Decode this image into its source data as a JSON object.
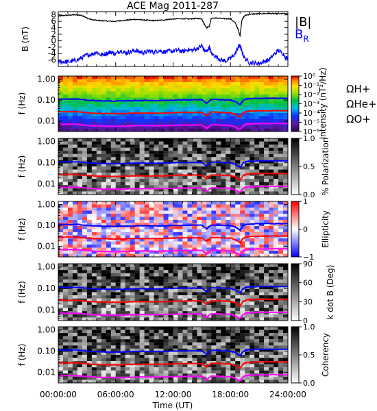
{
  "chart_data": {
    "title": "ACE Mag 2011-287",
    "xlabel": "Time (UT)",
    "xticks": [
      "00:00:00",
      "06:00:00",
      "12:00:00",
      "18:00:00",
      "24:00:00"
    ],
    "xlim_hours": [
      0,
      24
    ],
    "panels": [
      {
        "type": "line",
        "ylabel": "B (nT)",
        "ylim": [
          -8,
          9
        ],
        "yticks": [
          "8",
          "6",
          "4",
          "2",
          "0",
          "-2",
          "-4",
          "-6"
        ],
        "ytick_values": [
          8,
          6,
          4,
          2,
          0,
          -2,
          -4,
          -6
        ],
        "legend": [
          "|B|",
          "B"
        ],
        "legend_subscript": "R",
        "legend_placement": "right",
        "series": [
          {
            "name": "|B|",
            "color": "#000000",
            "x": [
              0,
              0.5,
              1,
              1.5,
              2,
              2.5,
              3,
              3.5,
              4,
              4.5,
              5,
              5.5,
              6,
              6.5,
              7,
              7.5,
              8,
              8.5,
              9,
              9.5,
              10,
              10.5,
              11,
              11.5,
              12,
              12.5,
              13,
              13.5,
              14,
              14.5,
              15,
              15.2,
              15.5,
              15.8,
              16,
              16.5,
              17,
              17.5,
              18,
              18.5,
              18.8,
              19,
              19.2,
              19.5,
              20,
              20.5,
              21,
              21.5,
              22,
              22.5,
              23,
              23.5,
              24
            ],
            "y": [
              7.6,
              7.8,
              7.9,
              8.0,
              8.0,
              7.8,
              7.0,
              6.5,
              6.3,
              6.2,
              6.1,
              6.0,
              6.0,
              6.2,
              6.3,
              6.5,
              6.6,
              6.5,
              6.4,
              6.3,
              6.2,
              6.3,
              6.4,
              6.6,
              6.7,
              6.8,
              6.8,
              6.7,
              6.8,
              6.9,
              6.8,
              5.5,
              4.0,
              4.5,
              7.0,
              7.0,
              6.9,
              6.8,
              6.8,
              5.5,
              3.5,
              1.5,
              6.5,
              7.8,
              8.2,
              8.3,
              8.3,
              8.4,
              8.4,
              8.4,
              8.3,
              8.4,
              8.3
            ]
          },
          {
            "name": "B",
            "color": "#0000ff",
            "x": [
              0,
              0.5,
              1,
              1.5,
              2,
              2.5,
              3,
              3.5,
              4,
              4.5,
              5,
              5.5,
              6,
              6.5,
              7,
              7.5,
              8,
              8.5,
              9,
              9.5,
              10,
              10.5,
              11,
              11.5,
              12,
              12.5,
              13,
              13.5,
              14,
              14.5,
              15,
              15.2,
              15.5,
              15.8,
              16,
              16.5,
              17,
              17.5,
              18,
              18.5,
              18.8,
              19,
              19.2,
              19.5,
              20,
              20.5,
              21,
              21.5,
              22,
              22.5,
              23,
              23.5,
              24
            ],
            "y": [
              -6.6,
              -6.5,
              -6.6,
              -6.3,
              -6.0,
              -5.2,
              -4.5,
              -4.2,
              -3.5,
              -4.5,
              -4.0,
              -3.5,
              -4.2,
              -3.0,
              -3.8,
              -3.5,
              -3.0,
              -3.5,
              -3.8,
              -3.2,
              -3.6,
              -3.0,
              -3.5,
              -3.3,
              -3.2,
              -3.0,
              -3.4,
              -2.8,
              -3.0,
              -2.5,
              -1.5,
              -2.8,
              -3.5,
              -2.0,
              -4.0,
              -5.0,
              -6.0,
              -6.3,
              -5.5,
              -4.0,
              -2.0,
              -1.5,
              -3.5,
              -5.5,
              -6.8,
              -7.0,
              -7.0,
              -6.5,
              -6.0,
              -4.5,
              -3.0,
              -4.0,
              -6.0
            ]
          }
        ]
      },
      {
        "type": "heatmap",
        "name": "power",
        "ylabel": "f (Hz)",
        "yticks": [
          "1.00",
          "0.10",
          "0.01"
        ],
        "ylim_log10": [
          -2.5,
          0.15
        ],
        "colorbar": {
          "label": "Intensity (nT²/Hz)",
          "ticks": [
            "10⁰",
            "10⁻¹",
            "10⁻²",
            "10⁻³",
            "10⁻⁴",
            "10⁻⁵",
            "10⁻⁶"
          ],
          "colormap": "rainbow"
        },
        "legend": [
          "ΩH+",
          "ΩHe+",
          "ΩO+"
        ]
      },
      {
        "type": "heatmap",
        "name": "polarization",
        "ylabel": "f (Hz)",
        "yticks": [
          "1.00",
          "0.10",
          "0.01"
        ],
        "colorbar": {
          "label": "% Polarization",
          "ticks": [
            "1.0",
            "0.5",
            "0.0"
          ],
          "colormap": "grayscale"
        }
      },
      {
        "type": "heatmap",
        "name": "ellipticity",
        "ylabel": "f (Hz)",
        "yticks": [
          "1.00",
          "0.10",
          "0.01"
        ],
        "colorbar": {
          "label": "Ellipticity",
          "ticks": [
            "1",
            "0",
            "−1"
          ],
          "colormap": "blue-white-red"
        }
      },
      {
        "type": "heatmap",
        "name": "kdotb",
        "ylabel": "f (Hz)",
        "yticks": [
          "1.00",
          "0.10",
          "0.01"
        ],
        "colorbar": {
          "label": "k dot B (Deg)",
          "ticks": [
            "90",
            "60",
            "30",
            "0"
          ],
          "colormap": "grayscale"
        }
      },
      {
        "type": "heatmap",
        "name": "coherency",
        "ylabel": "f (Hz)",
        "yticks": [
          "1.00",
          "0.10",
          "0.01"
        ],
        "colorbar": {
          "label": "Coherency",
          "ticks": [
            "1.0",
            "0.5",
            "0.0"
          ],
          "colormap": "grayscale"
        }
      }
    ],
    "cyclotron_lines": {
      "x": [
        0,
        1,
        2,
        3,
        4,
        5,
        6,
        7,
        8,
        9,
        10,
        11,
        12,
        13,
        14,
        15,
        15.5,
        16,
        17,
        18,
        18.5,
        19,
        19.3,
        19.6,
        20,
        21,
        22,
        23,
        24
      ],
      "H+": {
        "color": "#0000ff",
        "y": [
          0.11,
          0.112,
          0.112,
          0.1,
          0.094,
          0.091,
          0.09,
          0.092,
          0.096,
          0.097,
          0.095,
          0.096,
          0.1,
          0.103,
          0.103,
          0.104,
          0.07,
          0.107,
          0.104,
          0.1,
          0.085,
          0.06,
          0.095,
          0.112,
          0.118,
          0.122,
          0.123,
          0.123,
          0.122
        ]
      },
      "He+": {
        "color": "#ff0000",
        "y": [
          0.028,
          0.028,
          0.028,
          0.025,
          0.0235,
          0.023,
          0.0225,
          0.023,
          0.024,
          0.024,
          0.024,
          0.024,
          0.025,
          0.026,
          0.026,
          0.026,
          0.018,
          0.027,
          0.026,
          0.025,
          0.021,
          0.015,
          0.024,
          0.028,
          0.03,
          0.031,
          0.031,
          0.031,
          0.031
        ]
      },
      "O+": {
        "color": "#ff00ff",
        "y": [
          0.0069,
          0.007,
          0.007,
          0.0063,
          0.0059,
          0.0057,
          0.0056,
          0.0057,
          0.006,
          0.0061,
          0.0059,
          0.006,
          0.0062,
          0.0064,
          0.0064,
          0.0065,
          0.0044,
          0.0067,
          0.0065,
          0.0062,
          0.0053,
          0.0038,
          0.0059,
          0.007,
          0.0074,
          0.0076,
          0.0077,
          0.0077,
          0.0076
        ]
      }
    }
  }
}
